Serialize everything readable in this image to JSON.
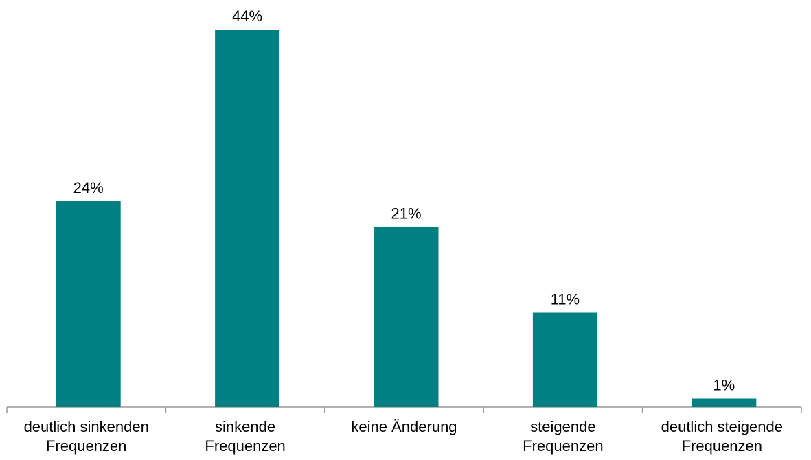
{
  "chart_data": {
    "type": "bar",
    "categories": [
      "deutlich sinkenden\nFrequenzen",
      "sinkende\nFrequenzen",
      "keine Änderung",
      "steigende\nFrequenzen",
      "deutlich steigende\nFrequenzen"
    ],
    "values": [
      24,
      44,
      21,
      11,
      1
    ],
    "value_labels": [
      "24%",
      "44%",
      "21%",
      "11%",
      "1%"
    ],
    "color": "#008082"
  }
}
